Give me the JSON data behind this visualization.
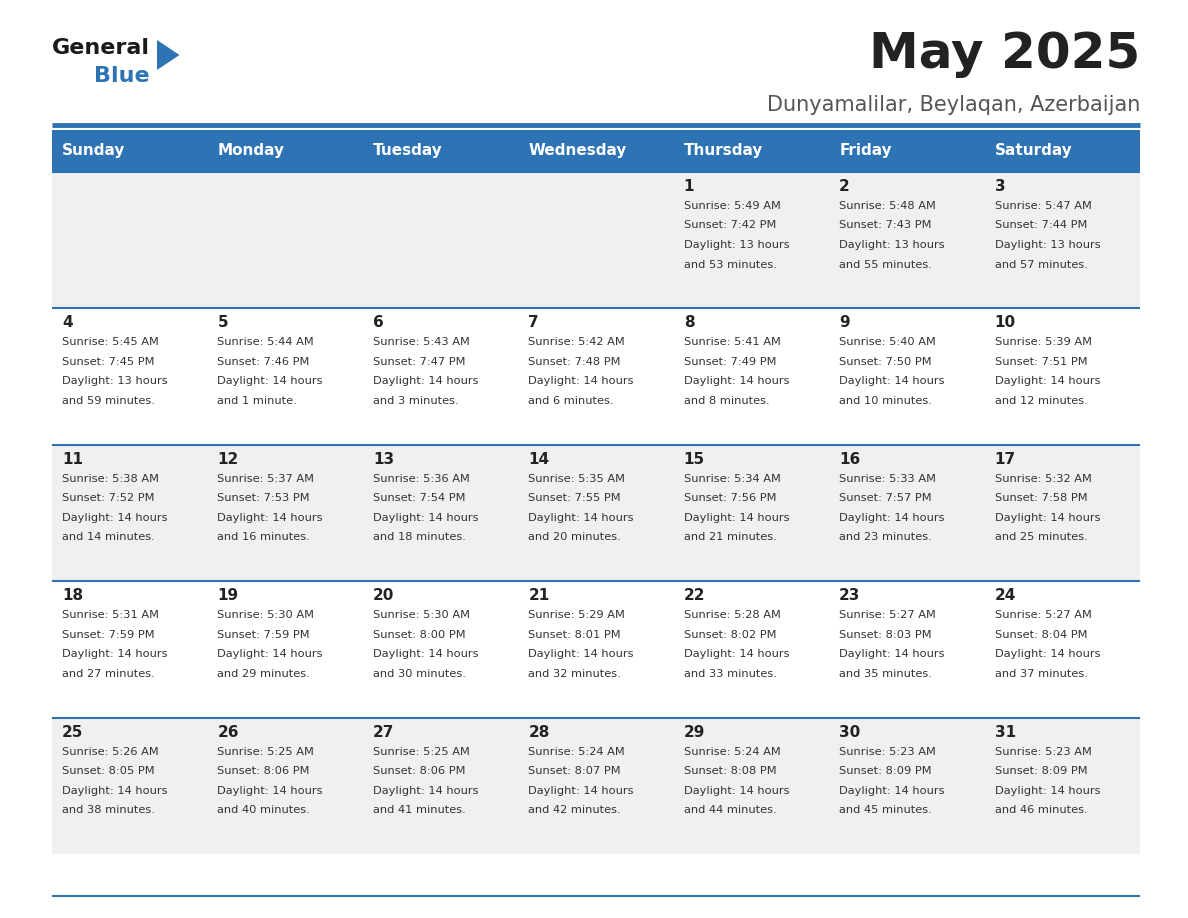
{
  "title": "May 2025",
  "subtitle": "Dunyamalilar, Beylaqan, Azerbaijan",
  "days_of_week": [
    "Sunday",
    "Monday",
    "Tuesday",
    "Wednesday",
    "Thursday",
    "Friday",
    "Saturday"
  ],
  "header_bg": "#2E74B5",
  "header_text": "#FFFFFF",
  "row_bg_odd": "#F0F0F0",
  "row_bg_even": "#FFFFFF",
  "cell_text": "#333333",
  "day_num_color": "#222222",
  "title_color": "#222222",
  "subtitle_color": "#555555",
  "blue_line_color": "#2E74B5",
  "calendar_data": [
    [
      {
        "day": "",
        "sunrise": "",
        "sunset": "",
        "daylight": ""
      },
      {
        "day": "",
        "sunrise": "",
        "sunset": "",
        "daylight": ""
      },
      {
        "day": "",
        "sunrise": "",
        "sunset": "",
        "daylight": ""
      },
      {
        "day": "",
        "sunrise": "",
        "sunset": "",
        "daylight": ""
      },
      {
        "day": "1",
        "sunrise": "5:49 AM",
        "sunset": "7:42 PM",
        "daylight": "13 hours and 53 minutes."
      },
      {
        "day": "2",
        "sunrise": "5:48 AM",
        "sunset": "7:43 PM",
        "daylight": "13 hours and 55 minutes."
      },
      {
        "day": "3",
        "sunrise": "5:47 AM",
        "sunset": "7:44 PM",
        "daylight": "13 hours and 57 minutes."
      }
    ],
    [
      {
        "day": "4",
        "sunrise": "5:45 AM",
        "sunset": "7:45 PM",
        "daylight": "13 hours and 59 minutes."
      },
      {
        "day": "5",
        "sunrise": "5:44 AM",
        "sunset": "7:46 PM",
        "daylight": "14 hours and 1 minute."
      },
      {
        "day": "6",
        "sunrise": "5:43 AM",
        "sunset": "7:47 PM",
        "daylight": "14 hours and 3 minutes."
      },
      {
        "day": "7",
        "sunrise": "5:42 AM",
        "sunset": "7:48 PM",
        "daylight": "14 hours and 6 minutes."
      },
      {
        "day": "8",
        "sunrise": "5:41 AM",
        "sunset": "7:49 PM",
        "daylight": "14 hours and 8 minutes."
      },
      {
        "day": "9",
        "sunrise": "5:40 AM",
        "sunset": "7:50 PM",
        "daylight": "14 hours and 10 minutes."
      },
      {
        "day": "10",
        "sunrise": "5:39 AM",
        "sunset": "7:51 PM",
        "daylight": "14 hours and 12 minutes."
      }
    ],
    [
      {
        "day": "11",
        "sunrise": "5:38 AM",
        "sunset": "7:52 PM",
        "daylight": "14 hours and 14 minutes."
      },
      {
        "day": "12",
        "sunrise": "5:37 AM",
        "sunset": "7:53 PM",
        "daylight": "14 hours and 16 minutes."
      },
      {
        "day": "13",
        "sunrise": "5:36 AM",
        "sunset": "7:54 PM",
        "daylight": "14 hours and 18 minutes."
      },
      {
        "day": "14",
        "sunrise": "5:35 AM",
        "sunset": "7:55 PM",
        "daylight": "14 hours and 20 minutes."
      },
      {
        "day": "15",
        "sunrise": "5:34 AM",
        "sunset": "7:56 PM",
        "daylight": "14 hours and 21 minutes."
      },
      {
        "day": "16",
        "sunrise": "5:33 AM",
        "sunset": "7:57 PM",
        "daylight": "14 hours and 23 minutes."
      },
      {
        "day": "17",
        "sunrise": "5:32 AM",
        "sunset": "7:58 PM",
        "daylight": "14 hours and 25 minutes."
      }
    ],
    [
      {
        "day": "18",
        "sunrise": "5:31 AM",
        "sunset": "7:59 PM",
        "daylight": "14 hours and 27 minutes."
      },
      {
        "day": "19",
        "sunrise": "5:30 AM",
        "sunset": "7:59 PM",
        "daylight": "14 hours and 29 minutes."
      },
      {
        "day": "20",
        "sunrise": "5:30 AM",
        "sunset": "8:00 PM",
        "daylight": "14 hours and 30 minutes."
      },
      {
        "day": "21",
        "sunrise": "5:29 AM",
        "sunset": "8:01 PM",
        "daylight": "14 hours and 32 minutes."
      },
      {
        "day": "22",
        "sunrise": "5:28 AM",
        "sunset": "8:02 PM",
        "daylight": "14 hours and 33 minutes."
      },
      {
        "day": "23",
        "sunrise": "5:27 AM",
        "sunset": "8:03 PM",
        "daylight": "14 hours and 35 minutes."
      },
      {
        "day": "24",
        "sunrise": "5:27 AM",
        "sunset": "8:04 PM",
        "daylight": "14 hours and 37 minutes."
      }
    ],
    [
      {
        "day": "25",
        "sunrise": "5:26 AM",
        "sunset": "8:05 PM",
        "daylight": "14 hours and 38 minutes."
      },
      {
        "day": "26",
        "sunrise": "5:25 AM",
        "sunset": "8:06 PM",
        "daylight": "14 hours and 40 minutes."
      },
      {
        "day": "27",
        "sunrise": "5:25 AM",
        "sunset": "8:06 PM",
        "daylight": "14 hours and 41 minutes."
      },
      {
        "day": "28",
        "sunrise": "5:24 AM",
        "sunset": "8:07 PM",
        "daylight": "14 hours and 42 minutes."
      },
      {
        "day": "29",
        "sunrise": "5:24 AM",
        "sunset": "8:08 PM",
        "daylight": "14 hours and 44 minutes."
      },
      {
        "day": "30",
        "sunrise": "5:23 AM",
        "sunset": "8:09 PM",
        "daylight": "14 hours and 45 minutes."
      },
      {
        "day": "31",
        "sunrise": "5:23 AM",
        "sunset": "8:09 PM",
        "daylight": "14 hours and 46 minutes."
      }
    ]
  ]
}
